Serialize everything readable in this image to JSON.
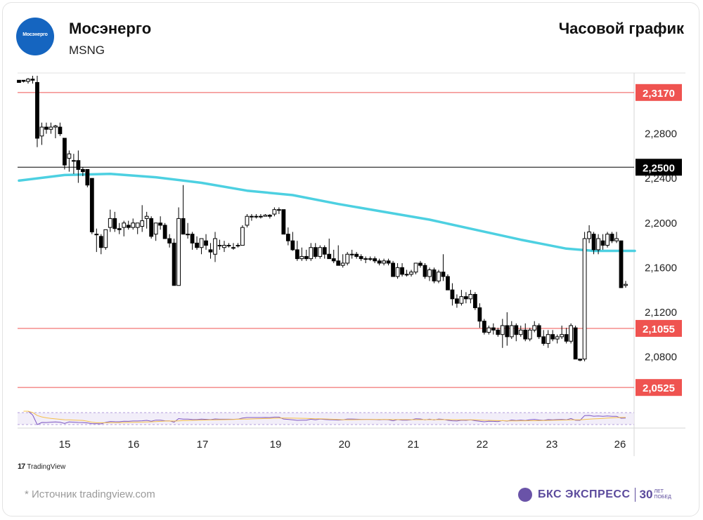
{
  "header": {
    "logo_text": "Мосэнерго",
    "company": "Мосэнерго",
    "ticker": "MSNG",
    "chart_type": "Часовой график"
  },
  "footer": {
    "source": "*  Источник tradingview.com",
    "tradingview": "TradingView",
    "brand_name": "БКС ЭКСПРЕСС",
    "brand_years": "30",
    "brand_sub_1": "лет",
    "brand_sub_2": "побед"
  },
  "colors": {
    "ema": "#4dd0e1",
    "level_red": "#ef5350",
    "level_black": "#000000",
    "candle": "#000000",
    "rsi": "#7e57c2",
    "rsi_ma": "#f5c04a"
  },
  "chart_data": {
    "type": "candlestick",
    "ylim": [
      2.035,
      2.3345
    ],
    "y_ticks": [
      "2,2800",
      "2,2400",
      "2,2000",
      "2,1600",
      "2,1200",
      "2,0800"
    ],
    "x_labels": [
      "15",
      "16",
      "17",
      "19",
      "20",
      "21",
      "22",
      "23",
      "26"
    ],
    "levels": [
      {
        "label": "2,3170",
        "value": 2.317,
        "color": "red"
      },
      {
        "label": "2,2500",
        "value": 2.25,
        "color": "black"
      },
      {
        "label": "2,1055",
        "value": 2.1055,
        "color": "red"
      },
      {
        "label": "2,0525",
        "value": 2.0525,
        "color": "red"
      }
    ],
    "candles_ohlc": [
      [
        2.328,
        2.328,
        2.326,
        2.326
      ],
      [
        2.328,
        2.328,
        2.326,
        2.327
      ],
      [
        2.327,
        2.33,
        2.325,
        2.329
      ],
      [
        2.329,
        2.332,
        2.325,
        2.328
      ],
      [
        2.326,
        2.332,
        2.268,
        2.276
      ],
      [
        2.278,
        2.29,
        2.27,
        2.286
      ],
      [
        2.286,
        2.29,
        2.28,
        2.284
      ],
      [
        2.284,
        2.29,
        2.28,
        2.286
      ],
      [
        2.286,
        2.288,
        2.276,
        2.287
      ],
      [
        2.286,
        2.29,
        2.278,
        2.28
      ],
      [
        2.276,
        2.276,
        2.248,
        2.252
      ],
      [
        2.258,
        2.265,
        2.246,
        2.262
      ],
      [
        2.256,
        2.262,
        2.244,
        2.256
      ],
      [
        2.256,
        2.265,
        2.236,
        2.248
      ],
      [
        2.248,
        2.25,
        2.242,
        2.246
      ],
      [
        2.248,
        2.248,
        2.232,
        2.234
      ],
      [
        2.24,
        2.24,
        2.19,
        2.192
      ],
      [
        2.19,
        2.195,
        2.174,
        2.19
      ],
      [
        2.188,
        2.19,
        2.172,
        2.178
      ],
      [
        2.178,
        2.194,
        2.176,
        2.194
      ],
      [
        2.196,
        2.212,
        2.192,
        2.204
      ],
      [
        2.204,
        2.21,
        2.192,
        2.195
      ],
      [
        2.195,
        2.2,
        2.19,
        2.194
      ],
      [
        2.196,
        2.202,
        2.188,
        2.2
      ],
      [
        2.198,
        2.202,
        2.194,
        2.196
      ],
      [
        2.196,
        2.204,
        2.194,
        2.2
      ],
      [
        2.196,
        2.2,
        2.19,
        2.2
      ],
      [
        2.197,
        2.216,
        2.192,
        2.202
      ],
      [
        2.204,
        2.21,
        2.195,
        2.206
      ],
      [
        2.204,
        2.206,
        2.186,
        2.188
      ],
      [
        2.19,
        2.2,
        2.184,
        2.2
      ],
      [
        2.2,
        2.206,
        2.194,
        2.198
      ],
      [
        2.198,
        2.2,
        2.186,
        2.186
      ],
      [
        2.186,
        2.19,
        2.178,
        2.182
      ],
      [
        2.182,
        2.186,
        2.144,
        2.144
      ],
      [
        2.144,
        2.214,
        2.144,
        2.204
      ],
      [
        2.204,
        2.234,
        2.196,
        2.19
      ],
      [
        2.19,
        2.2,
        2.186,
        2.19
      ],
      [
        2.19,
        2.192,
        2.176,
        2.182
      ],
      [
        2.182,
        2.188,
        2.176,
        2.178
      ],
      [
        2.178,
        2.184,
        2.172,
        2.186
      ],
      [
        2.184,
        2.19,
        2.176,
        2.18
      ],
      [
        2.176,
        2.182,
        2.168,
        2.174
      ],
      [
        2.172,
        2.192,
        2.165,
        2.186
      ],
      [
        2.18,
        2.185,
        2.176,
        2.18
      ],
      [
        2.178,
        2.184,
        2.174,
        2.18
      ],
      [
        2.18,
        2.182,
        2.178,
        2.18
      ],
      [
        2.178,
        2.182,
        2.176,
        2.178
      ],
      [
        2.18,
        2.182,
        2.178,
        2.18
      ],
      [
        2.18,
        2.198,
        2.18,
        2.196
      ],
      [
        2.198,
        2.208,
        2.196,
        2.206
      ],
      [
        2.206,
        2.208,
        2.202,
        2.206
      ],
      [
        2.206,
        2.208,
        2.204,
        2.206
      ],
      [
        2.206,
        2.208,
        2.204,
        2.206
      ],
      [
        2.206,
        2.208,
        2.206,
        2.207
      ],
      [
        2.207,
        2.208,
        2.204,
        2.206
      ],
      [
        2.208,
        2.214,
        2.206,
        2.212
      ],
      [
        2.212,
        2.214,
        2.208,
        2.212
      ],
      [
        2.212,
        2.212,
        2.19,
        2.19
      ],
      [
        2.19,
        2.196,
        2.18,
        2.184
      ],
      [
        2.184,
        2.192,
        2.175,
        2.176
      ],
      [
        2.176,
        2.184,
        2.166,
        2.168
      ],
      [
        2.168,
        2.178,
        2.166,
        2.17
      ],
      [
        2.17,
        2.176,
        2.166,
        2.168
      ],
      [
        2.168,
        2.182,
        2.166,
        2.178
      ],
      [
        2.178,
        2.182,
        2.168,
        2.17
      ],
      [
        2.17,
        2.18,
        2.168,
        2.178
      ],
      [
        2.178,
        2.18,
        2.168,
        2.172
      ],
      [
        2.172,
        2.186,
        2.168,
        2.168
      ],
      [
        2.168,
        2.176,
        2.164,
        2.166
      ],
      [
        2.166,
        2.18,
        2.162,
        2.162
      ],
      [
        2.162,
        2.172,
        2.16,
        2.164
      ],
      [
        2.164,
        2.174,
        2.162,
        2.172
      ],
      [
        2.172,
        2.176,
        2.168,
        2.172
      ],
      [
        2.172,
        2.174,
        2.168,
        2.17
      ],
      [
        2.17,
        2.172,
        2.166,
        2.168
      ],
      [
        2.168,
        2.17,
        2.164,
        2.168
      ],
      [
        2.168,
        2.17,
        2.166,
        2.168
      ],
      [
        2.168,
        2.17,
        2.164,
        2.166
      ],
      [
        2.166,
        2.168,
        2.162,
        2.164
      ],
      [
        2.164,
        2.168,
        2.162,
        2.166
      ],
      [
        2.166,
        2.168,
        2.162,
        2.164
      ],
      [
        2.164,
        2.166,
        2.152,
        2.152
      ],
      [
        2.152,
        2.164,
        2.15,
        2.16
      ],
      [
        2.16,
        2.164,
        2.152,
        2.154
      ],
      [
        2.154,
        2.158,
        2.152,
        2.154
      ],
      [
        2.154,
        2.158,
        2.152,
        2.156
      ],
      [
        2.156,
        2.164,
        2.154,
        2.164
      ],
      [
        2.164,
        2.166,
        2.16,
        2.162
      ],
      [
        2.162,
        2.164,
        2.15,
        2.152
      ],
      [
        2.152,
        2.16,
        2.148,
        2.158
      ],
      [
        2.158,
        2.16,
        2.146,
        2.148
      ],
      [
        2.148,
        2.158,
        2.146,
        2.156
      ],
      [
        2.156,
        2.172,
        2.148,
        2.152
      ],
      [
        2.152,
        2.154,
        2.14,
        2.14
      ],
      [
        2.14,
        2.146,
        2.126,
        2.132
      ],
      [
        2.132,
        2.136,
        2.124,
        2.128
      ],
      [
        2.128,
        2.14,
        2.126,
        2.134
      ],
      [
        2.134,
        2.138,
        2.128,
        2.132
      ],
      [
        2.132,
        2.14,
        2.128,
        2.136
      ],
      [
        2.136,
        2.138,
        2.122,
        2.124
      ],
      [
        2.124,
        2.128,
        2.106,
        2.112
      ],
      [
        2.112,
        2.114,
        2.1,
        2.102
      ],
      [
        2.102,
        2.108,
        2.1,
        2.106
      ],
      [
        2.106,
        2.11,
        2.1,
        2.104
      ],
      [
        2.104,
        2.106,
        2.098,
        2.1
      ],
      [
        2.1,
        2.114,
        2.088,
        2.108
      ],
      [
        2.108,
        2.12,
        2.09,
        2.098
      ],
      [
        2.098,
        2.112,
        2.096,
        2.108
      ],
      [
        2.108,
        2.11,
        2.094,
        2.1
      ],
      [
        2.1,
        2.108,
        2.098,
        2.104
      ],
      [
        2.104,
        2.11,
        2.094,
        2.096
      ],
      [
        2.096,
        2.106,
        2.094,
        2.104
      ],
      [
        2.104,
        2.112,
        2.102,
        2.108
      ],
      [
        2.108,
        2.11,
        2.096,
        2.098
      ],
      [
        2.098,
        2.104,
        2.09,
        2.092
      ],
      [
        2.092,
        2.104,
        2.088,
        2.1
      ],
      [
        2.1,
        2.104,
        2.094,
        2.096
      ],
      [
        2.096,
        2.1,
        2.092,
        2.098
      ],
      [
        2.098,
        2.108,
        2.096,
        2.1
      ],
      [
        2.1,
        2.106,
        2.092,
        2.094
      ],
      [
        2.094,
        2.11,
        2.092,
        2.108
      ],
      [
        2.106,
        2.108,
        2.084,
        2.078
      ],
      [
        2.078,
        2.078,
        2.076,
        2.077
      ],
      [
        2.078,
        2.192,
        2.076,
        2.186
      ],
      [
        2.186,
        2.198,
        2.182,
        2.192
      ],
      [
        2.19,
        2.192,
        2.172,
        2.176
      ],
      [
        2.176,
        2.19,
        2.172,
        2.186
      ],
      [
        2.184,
        2.19,
        2.176,
        2.18
      ],
      [
        2.18,
        2.192,
        2.178,
        2.19
      ],
      [
        2.19,
        2.192,
        2.182,
        2.184
      ],
      [
        2.184,
        2.192,
        2.182,
        2.186
      ],
      [
        2.184,
        2.184,
        2.142,
        2.142
      ],
      [
        2.144,
        2.148,
        2.142,
        2.145
      ]
    ],
    "ema": [
      [
        0,
        2.238
      ],
      [
        10,
        2.243
      ],
      [
        20,
        2.244
      ],
      [
        30,
        2.241
      ],
      [
        40,
        2.236
      ],
      [
        50,
        2.229
      ],
      [
        60,
        2.225
      ],
      [
        70,
        2.217
      ],
      [
        80,
        2.21
      ],
      [
        90,
        2.203
      ],
      [
        100,
        2.194
      ],
      [
        110,
        2.185
      ],
      [
        120,
        2.177
      ],
      [
        126,
        2.175
      ],
      [
        135,
        2.175
      ]
    ]
  }
}
